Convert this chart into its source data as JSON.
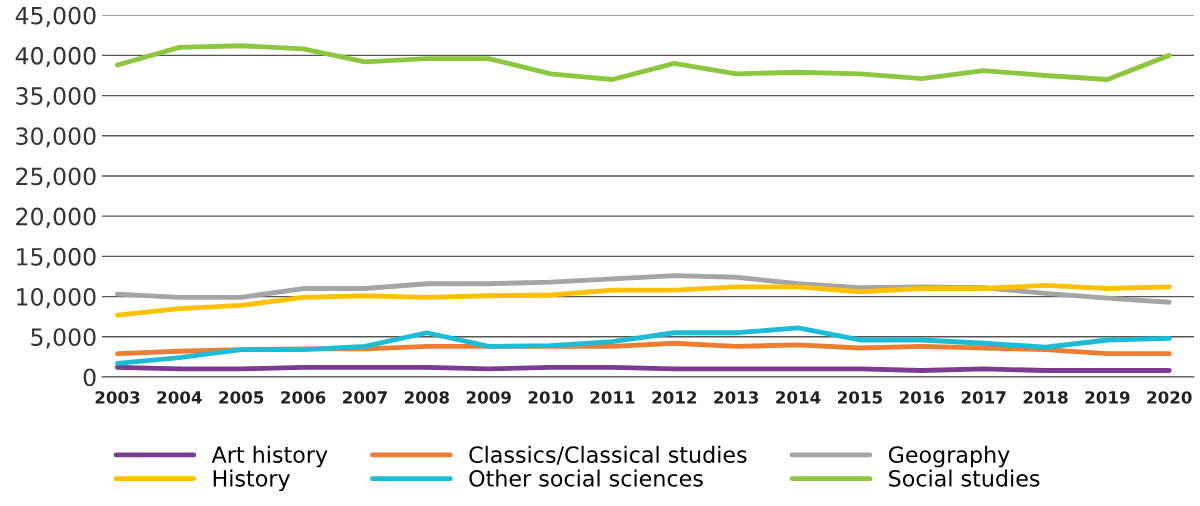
{
  "chart_data": {
    "type": "line",
    "categories": [
      "2003",
      "2004",
      "2005",
      "2006",
      "2007",
      "2008",
      "2009",
      "2010",
      "2011",
      "2012",
      "2013",
      "2014",
      "2015",
      "2016",
      "2017",
      "2018",
      "2019",
      "2020"
    ],
    "series": [
      {
        "name": "Art history",
        "color": "#7a3b91",
        "values": [
          1200,
          1000,
          1000,
          1200,
          1200,
          1200,
          1000,
          1200,
          1200,
          1000,
          1000,
          1000,
          1000,
          800,
          1000,
          800,
          800,
          800
        ]
      },
      {
        "name": "Classics/Classical studies",
        "color": "#ed7d31",
        "values": [
          2900,
          3200,
          3400,
          3500,
          3500,
          3800,
          3800,
          3800,
          3800,
          4200,
          3800,
          4000,
          3600,
          3800,
          3600,
          3400,
          2900,
          2900
        ]
      },
      {
        "name": "Geography",
        "color": "#a5a5a5",
        "values": [
          10300,
          9900,
          9900,
          11000,
          11000,
          11600,
          11600,
          11800,
          12200,
          12600,
          12400,
          11600,
          11100,
          11200,
          11100,
          10400,
          9800,
          9300
        ]
      },
      {
        "name": "History",
        "color": "#ffc000",
        "values": [
          7700,
          8500,
          8900,
          9900,
          10100,
          9900,
          10100,
          10200,
          10800,
          10800,
          11200,
          11200,
          10600,
          11000,
          11000,
          11400,
          11000,
          11200
        ]
      },
      {
        "name": "Other social sciences",
        "color": "#1cbcd6",
        "values": [
          1700,
          2400,
          3400,
          3400,
          3800,
          5500,
          3800,
          3900,
          4400,
          5500,
          5500,
          6100,
          4600,
          4600,
          4200,
          3700,
          4600,
          4800
        ]
      },
      {
        "name": "Social studies",
        "color": "#8dc63f",
        "values": [
          38800,
          41000,
          41200,
          40800,
          39200,
          39600,
          39600,
          37700,
          37000,
          39000,
          37700,
          37900,
          37700,
          37100,
          38100,
          37500,
          37000,
          40000
        ]
      }
    ],
    "ylim": [
      0,
      45000
    ],
    "yticks": [
      {
        "value": 0,
        "label": "0"
      },
      {
        "value": 5000,
        "label": "5,000"
      },
      {
        "value": 10000,
        "label": "10,000"
      },
      {
        "value": 15000,
        "label": "15,000"
      },
      {
        "value": 20000,
        "label": "20,000"
      },
      {
        "value": 25000,
        "label": "25,000"
      },
      {
        "value": 30000,
        "label": "30,000"
      },
      {
        "value": 35000,
        "label": "35,000"
      },
      {
        "value": 40000,
        "label": "40,000"
      },
      {
        "value": 45000,
        "label": "45,000"
      }
    ],
    "grid": "y",
    "legend": "bottom",
    "marker": "none",
    "line_style": "solid"
  }
}
